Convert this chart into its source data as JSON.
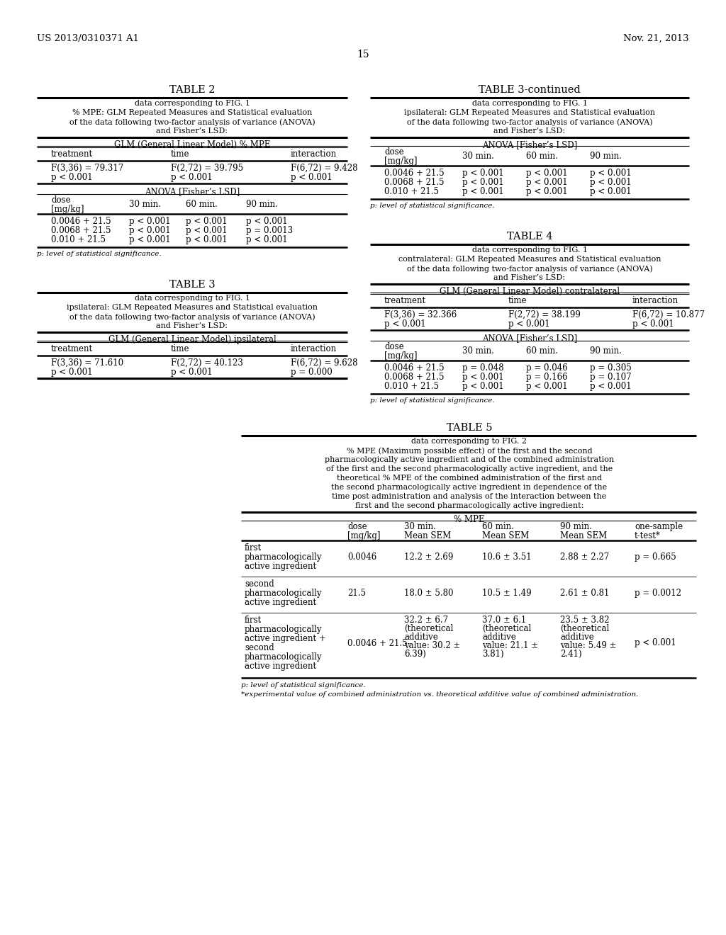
{
  "bg_color": "#ffffff",
  "header_left": "US 2013/0310371 A1",
  "header_right": "Nov. 21, 2013",
  "page_num": "15",
  "table2": {
    "title": "TABLE 2",
    "caption": [
      "data corresponding to FIG. 1",
      "% MPE: GLM Repeated Measures and Statistical evaluation",
      "of the data following two-factor analysis of variance (ANOVA)",
      "and Fisher’s LSD:"
    ],
    "glm_header": "GLM (General Linear Model) % MPE",
    "col_headers": [
      "treatment",
      "time",
      "interaction"
    ],
    "glm_data": [
      [
        "F(3,36) = 79.317",
        "F(2,72) = 39.795",
        "F(6,72) = 9.428"
      ],
      [
        "p < 0.001",
        "p < 0.001",
        "p < 0.001"
      ]
    ],
    "anova_header": "ANOVA [Fisher’s LSD]",
    "dose_data": [
      [
        "0.0046 + 21.5",
        "p < 0.001",
        "p < 0.001",
        "p < 0.001"
      ],
      [
        "0.0068 + 21.5",
        "p < 0.001",
        "p < 0.001",
        "p = 0.0013"
      ],
      [
        "0.010 + 21.5",
        "p < 0.001",
        "p < 0.001",
        "p < 0.001"
      ]
    ],
    "footnote": "p: level of statistical significance."
  },
  "table3": {
    "title": "TABLE 3",
    "caption": [
      "data corresponding to FIG. 1",
      "ipsilateral: GLM Repeated Measures and Statistical evaluation",
      "of the data following two-factor analysis of variance (ANOVA)",
      "and Fisher’s LSD:"
    ],
    "glm_header": "GLM (General Linear Model) ipsilateral",
    "col_headers": [
      "treatment",
      "time",
      "interaction"
    ],
    "glm_data": [
      [
        "F(3,36) = 71.610",
        "F(2,72) = 40.123",
        "F(6,72) = 9.628"
      ],
      [
        "p < 0.001",
        "p < 0.001",
        "p = 0.000"
      ]
    ]
  },
  "table3cont": {
    "title": "TABLE 3-continued",
    "caption": [
      "data corresponding to FIG. 1",
      "ipsilateral: GLM Repeated Measures and Statistical evaluation",
      "of the data following two-factor analysis of variance (ANOVA)",
      "and Fisher’s LSD:"
    ],
    "anova_header": "ANOVA [Fisher’s LSD]",
    "dose_data": [
      [
        "0.0046 + 21.5",
        "p < 0.001",
        "p < 0.001",
        "p < 0.001"
      ],
      [
        "0.0068 + 21.5",
        "p < 0.001",
        "p < 0.001",
        "p < 0.001"
      ],
      [
        "0.010 + 21.5",
        "p < 0.001",
        "p < 0.001",
        "p < 0.001"
      ]
    ],
    "footnote": "p: level of statistical significance."
  },
  "table4": {
    "title": "TABLE 4",
    "caption": [
      "data corresponding to FIG. 1",
      "contralateral: GLM Repeated Measures and Statistical evaluation",
      "of the data following two-factor analysis of variance (ANOVA)",
      "and Fisher’s LSD:"
    ],
    "glm_header": "GLM (General Linear Model) contralateral",
    "col_headers": [
      "treatment",
      "time",
      "interaction"
    ],
    "glm_data": [
      [
        "F(3,36) = 32.366",
        "F(2,72) = 38.199",
        "F(6,72) = 10.877"
      ],
      [
        "p < 0.001",
        "p < 0.001",
        "p < 0.001"
      ]
    ],
    "anova_header": "ANOVA [Fisher’s LSD]",
    "dose_data": [
      [
        "0.0046 + 21.5",
        "p = 0.048",
        "p = 0.046",
        "p = 0.305"
      ],
      [
        "0.0068 + 21.5",
        "p < 0.001",
        "p = 0.166",
        "p = 0.107"
      ],
      [
        "0.010 + 21.5",
        "p < 0.001",
        "p < 0.001",
        "p < 0.001"
      ]
    ],
    "footnote": "p: level of statistical significance."
  },
  "table5": {
    "title": "TABLE 5",
    "caption": [
      "data corresponding to FIG. 2",
      "% MPE (Maximum possible effect) of the first and the second",
      "pharmacologically active ingredient and of the combined administration",
      "of the first and the second pharmacologically active ingredient, and the",
      "theoretical % MPE of the combined administration of the first and",
      "the second pharmacologically active ingredient in dependence of the",
      "time post administration and analysis of the interaction between the",
      "first and the second pharmacologically active ingredient:"
    ],
    "mpe_header": "% MPE",
    "rows": [
      {
        "label": [
          "first",
          "pharmacologically",
          "active ingredient"
        ],
        "dose": "0.0046",
        "v30": "12.2 ± 2.69",
        "v60": "10.6 ± 3.51",
        "v90": "2.88 ± 2.27",
        "ttest": "p = 0.665"
      },
      {
        "label": [
          "second",
          "pharmacologically",
          "active ingredient"
        ],
        "dose": "21.5",
        "v30": "18.0 ± 5.80",
        "v60": "10.5 ± 1.49",
        "v90": "2.61 ± 0.81",
        "ttest": "p = 0.0012"
      },
      {
        "label": [
          "first",
          "pharmacologically",
          "active ingredient +",
          "second",
          "pharmacologically",
          "active ingredient"
        ],
        "dose": "0.0046 + 21.5",
        "v30": [
          "32.2 ± 6.7",
          "(theoretical",
          "additive",
          "value: 30.2 ±",
          "6.39)"
        ],
        "v60": [
          "37.0 ± 6.1",
          "(theoretical",
          "additive",
          "value: 21.1 ±",
          "3.81)"
        ],
        "v90": [
          "23.5 ± 3.82",
          "(theoretical",
          "additive",
          "value: 5.49 ±",
          "2.41)"
        ],
        "ttest": "p < 0.001"
      }
    ],
    "footnote1": "p: level of statistical significance.",
    "footnote2": "*experimental value of combined administration vs. theoretical additive value of combined administration."
  }
}
